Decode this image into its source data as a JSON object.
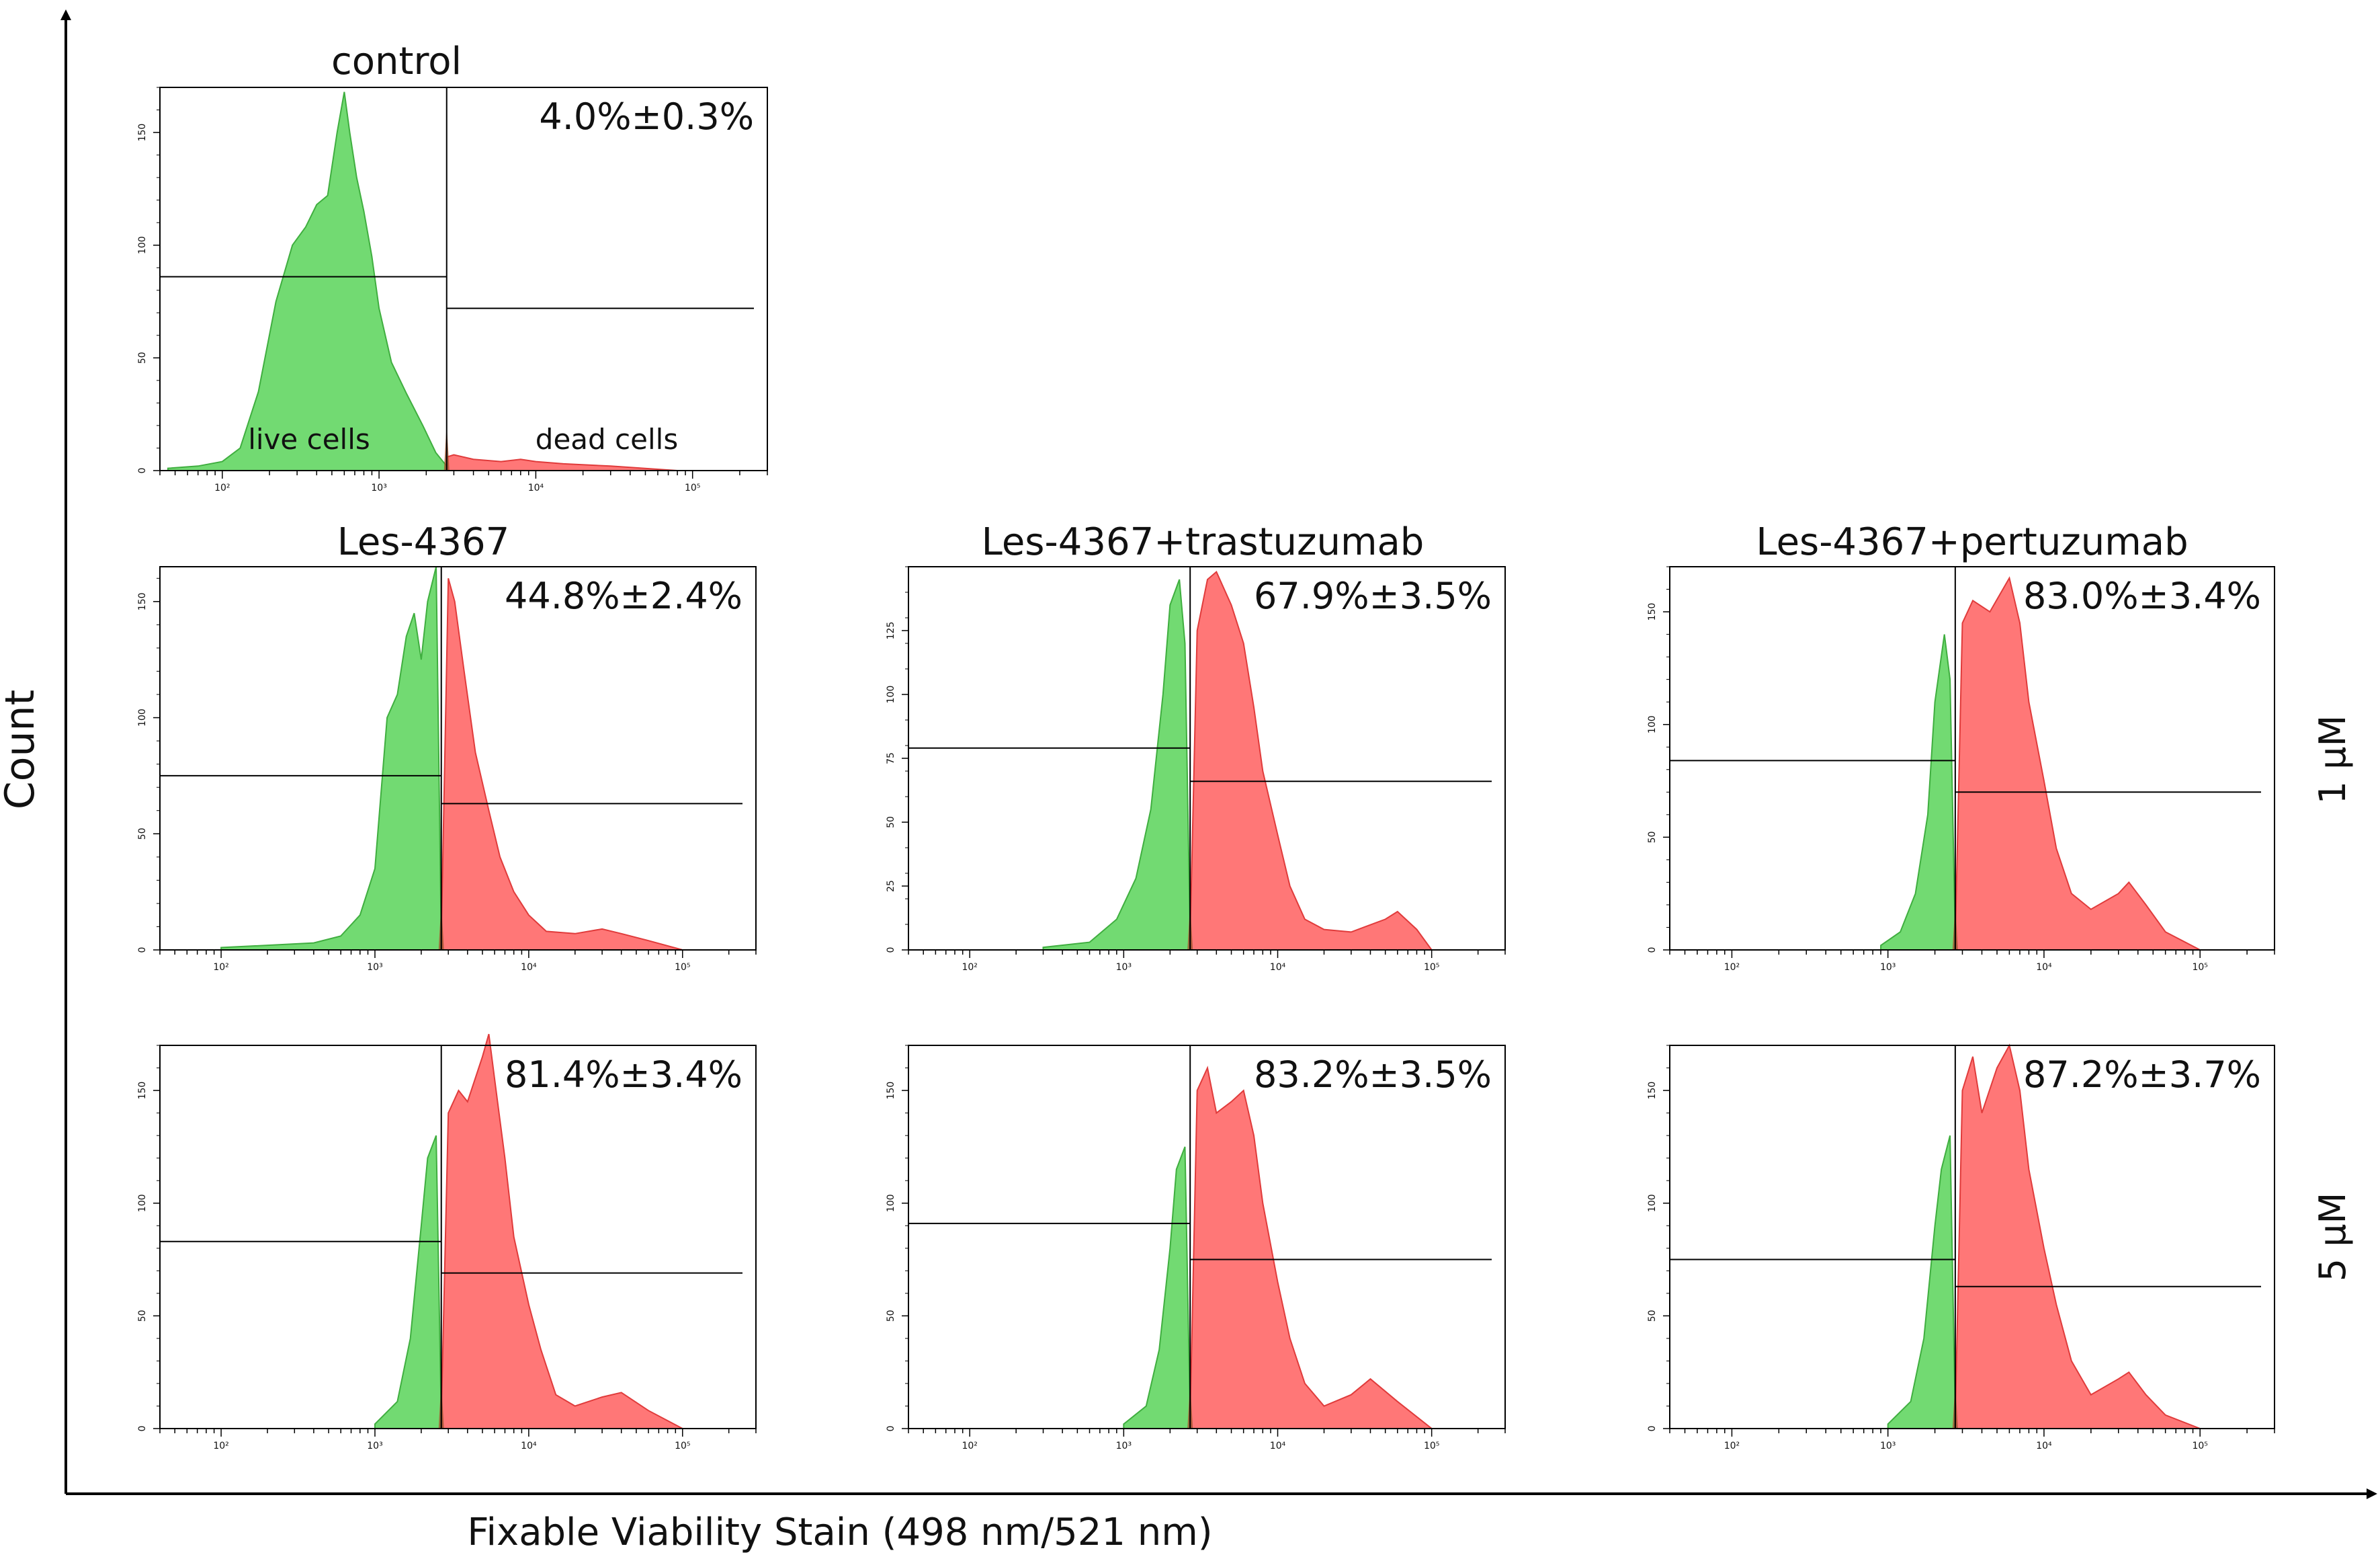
{
  "figure": {
    "y_axis_label": "Count",
    "x_axis_label": "Fixable Viability Stain (498 nm/521 nm)",
    "row_labels": [
      "1 μM",
      "5 μM"
    ],
    "column_titles": [
      "Les-4367",
      "Les-4367+trastuzumab",
      "Les-4367+pertuzumab"
    ],
    "colors": {
      "live": "#6ad86a",
      "dead": "#ff7070",
      "live_stroke": "#3fae3f",
      "dead_stroke": "#e03b3b",
      "overlap": "#a0522d",
      "gate": "#000000"
    }
  },
  "chart_data": [
    {
      "id": "control",
      "type": "area",
      "title": "control",
      "percentage_label": "4.0%±0.3%",
      "gate_labels": [
        "live cells",
        "dead cells"
      ],
      "x_scale": "log",
      "xlim": [
        40,
        300000
      ],
      "x_ticks": [
        100,
        1000,
        10000,
        100000
      ],
      "x_tick_labels": [
        "10²",
        "10³",
        "10⁴",
        "10⁵"
      ],
      "ylim": [
        0,
        170
      ],
      "y_ticks": [
        0,
        50,
        100,
        150
      ],
      "y_tick_labels": [
        "0",
        "50",
        "100",
        "150"
      ],
      "gate_x": 2700,
      "live_marker_y": 86,
      "dead_marker_y": 72,
      "series": [
        {
          "name": "live",
          "x": [
            45,
            70,
            100,
            130,
            170,
            220,
            280,
            340,
            400,
            470,
            540,
            600,
            650,
            720,
            800,
            900,
            1000,
            1200,
            1500,
            1900,
            2300,
            2700
          ],
          "y": [
            1,
            2,
            4,
            10,
            35,
            75,
            100,
            108,
            118,
            122,
            150,
            168,
            150,
            130,
            115,
            95,
            72,
            48,
            34,
            20,
            8,
            2
          ]
        },
        {
          "name": "dead",
          "x": [
            2700,
            3000,
            4000,
            6000,
            8000,
            10000,
            15000,
            30000,
            80000
          ],
          "y": [
            6,
            7,
            5,
            4,
            5,
            4,
            3,
            2,
            0
          ]
        }
      ]
    },
    {
      "id": "1uM-les",
      "type": "area",
      "title": "Les-4367",
      "row": "1 μM",
      "percentage_label": "44.8%±2.4%",
      "x_scale": "log",
      "xlim": [
        40,
        300000
      ],
      "x_ticks": [
        100,
        1000,
        10000,
        100000
      ],
      "x_tick_labels": [
        "10²",
        "10³",
        "10⁴",
        "10⁵"
      ],
      "ylim": [
        0,
        165
      ],
      "y_ticks": [
        0,
        50,
        100,
        150
      ],
      "y_tick_labels": [
        "0",
        "50",
        "100",
        "150"
      ],
      "gate_x": 2700,
      "live_marker_y": 75,
      "dead_marker_y": 63,
      "series": [
        {
          "name": "live",
          "x": [
            100,
            200,
            400,
            600,
            800,
            1000,
            1200,
            1400,
            1600,
            1800,
            2000,
            2200,
            2500,
            2700
          ],
          "y": [
            1,
            2,
            3,
            6,
            15,
            35,
            100,
            110,
            135,
            145,
            125,
            150,
            165,
            5
          ]
        },
        {
          "name": "dead",
          "x": [
            2700,
            3000,
            3300,
            3800,
            4500,
            5500,
            6500,
            8000,
            10000,
            13000,
            20000,
            30000,
            40000,
            60000,
            100000
          ],
          "y": [
            5,
            160,
            150,
            120,
            85,
            60,
            40,
            25,
            15,
            8,
            7,
            9,
            7,
            4,
            0
          ]
        }
      ]
    },
    {
      "id": "1uM-tras",
      "type": "area",
      "title": "Les-4367+trastuzumab",
      "row": "1 μM",
      "percentage_label": "67.9%±3.5%",
      "x_scale": "log",
      "xlim": [
        40,
        300000
      ],
      "x_ticks": [
        100,
        1000,
        10000,
        100000
      ],
      "x_tick_labels": [
        "10²",
        "10³",
        "10⁴",
        "10⁵"
      ],
      "ylim": [
        0,
        150
      ],
      "y_ticks": [
        0,
        25,
        50,
        75,
        100,
        125
      ],
      "y_tick_labels": [
        "0",
        "25",
        "50",
        "75",
        "100",
        "125"
      ],
      "gate_x": 2700,
      "live_marker_y": 79,
      "dead_marker_y": 66,
      "series": [
        {
          "name": "live",
          "x": [
            300,
            600,
            900,
            1200,
            1500,
            1800,
            2000,
            2300,
            2500,
            2700
          ],
          "y": [
            1,
            3,
            12,
            28,
            55,
            100,
            135,
            145,
            120,
            5
          ]
        },
        {
          "name": "dead",
          "x": [
            2700,
            3000,
            3500,
            4000,
            5000,
            6000,
            7000,
            8000,
            10000,
            12000,
            15000,
            20000,
            30000,
            50000,
            60000,
            80000,
            100000
          ],
          "y": [
            5,
            125,
            145,
            148,
            135,
            120,
            95,
            70,
            45,
            25,
            12,
            8,
            7,
            12,
            15,
            8,
            0
          ]
        }
      ]
    },
    {
      "id": "1uM-pert",
      "type": "area",
      "title": "Les-4367+pertuzumab",
      "row": "1 μM",
      "percentage_label": "83.0%±3.4%",
      "x_scale": "log",
      "xlim": [
        40,
        300000
      ],
      "x_ticks": [
        100,
        1000,
        10000,
        100000
      ],
      "x_tick_labels": [
        "10²",
        "10³",
        "10⁴",
        "10⁵"
      ],
      "ylim": [
        0,
        170
      ],
      "y_ticks": [
        0,
        50,
        100,
        150
      ],
      "y_tick_labels": [
        "0",
        "50",
        "100",
        "150"
      ],
      "gate_x": 2700,
      "live_marker_y": 84,
      "dead_marker_y": 70,
      "series": [
        {
          "name": "live",
          "x": [
            900,
            1200,
            1500,
            1800,
            2000,
            2300,
            2500,
            2700
          ],
          "y": [
            2,
            8,
            25,
            60,
            110,
            140,
            120,
            5
          ]
        },
        {
          "name": "dead",
          "x": [
            2700,
            3000,
            3500,
            4500,
            6000,
            7000,
            8000,
            10000,
            12000,
            15000,
            20000,
            30000,
            35000,
            45000,
            60000,
            100000
          ],
          "y": [
            5,
            145,
            155,
            150,
            165,
            145,
            110,
            75,
            45,
            25,
            18,
            25,
            30,
            20,
            8,
            0
          ]
        }
      ]
    },
    {
      "id": "5uM-les",
      "type": "area",
      "title": "",
      "row": "5 μM",
      "percentage_label": "81.4%±3.4%",
      "x_scale": "log",
      "xlim": [
        40,
        300000
      ],
      "x_ticks": [
        100,
        1000,
        10000,
        100000
      ],
      "x_tick_labels": [
        "10²",
        "10³",
        "10⁴",
        "10⁵"
      ],
      "ylim": [
        0,
        170
      ],
      "y_ticks": [
        0,
        50,
        100,
        150
      ],
      "y_tick_labels": [
        "0",
        "50",
        "100",
        "150"
      ],
      "gate_x": 2700,
      "live_marker_y": 83,
      "dead_marker_y": 69,
      "series": [
        {
          "name": "live",
          "x": [
            1000,
            1400,
            1700,
            2000,
            2200,
            2500,
            2700
          ],
          "y": [
            2,
            12,
            40,
            90,
            120,
            130,
            5
          ]
        },
        {
          "name": "dead",
          "x": [
            2700,
            3000,
            3500,
            4000,
            5000,
            5500,
            6000,
            7000,
            8000,
            10000,
            12000,
            15000,
            20000,
            30000,
            40000,
            60000,
            100000
          ],
          "y": [
            5,
            140,
            150,
            145,
            165,
            175,
            155,
            120,
            85,
            55,
            35,
            15,
            10,
            14,
            16,
            8,
            0
          ]
        }
      ]
    },
    {
      "id": "5uM-tras",
      "type": "area",
      "title": "",
      "row": "5 μM",
      "percentage_label": "83.2%±3.5%",
      "x_scale": "log",
      "xlim": [
        40,
        300000
      ],
      "x_ticks": [
        100,
        1000,
        10000,
        100000
      ],
      "x_tick_labels": [
        "10²",
        "10³",
        "10⁴",
        "10⁵"
      ],
      "ylim": [
        0,
        170
      ],
      "y_ticks": [
        0,
        50,
        100,
        150
      ],
      "y_tick_labels": [
        "0",
        "50",
        "100",
        "150"
      ],
      "gate_x": 2700,
      "live_marker_y": 91,
      "dead_marker_y": 75,
      "series": [
        {
          "name": "live",
          "x": [
            1000,
            1400,
            1700,
            2000,
            2200,
            2500,
            2700
          ],
          "y": [
            2,
            10,
            35,
            80,
            115,
            125,
            5
          ]
        },
        {
          "name": "dead",
          "x": [
            2700,
            3000,
            3500,
            4000,
            5000,
            6000,
            7000,
            8000,
            10000,
            12000,
            15000,
            20000,
            30000,
            40000,
            60000,
            100000
          ],
          "y": [
            5,
            150,
            160,
            140,
            145,
            150,
            130,
            100,
            65,
            40,
            20,
            10,
            15,
            22,
            12,
            0
          ]
        }
      ]
    },
    {
      "id": "5uM-pert",
      "type": "area",
      "title": "",
      "row": "5 μM",
      "percentage_label": "87.2%±3.7%",
      "x_scale": "log",
      "xlim": [
        40,
        300000
      ],
      "x_ticks": [
        100,
        1000,
        10000,
        100000
      ],
      "x_tick_labels": [
        "10²",
        "10³",
        "10⁴",
        "10⁵"
      ],
      "ylim": [
        0,
        170
      ],
      "y_ticks": [
        0,
        50,
        100,
        150
      ],
      "y_tick_labels": [
        "0",
        "50",
        "100",
        "150"
      ],
      "gate_x": 2700,
      "live_marker_y": 75,
      "dead_marker_y": 63,
      "series": [
        {
          "name": "live",
          "x": [
            1000,
            1400,
            1700,
            2000,
            2200,
            2500,
            2700
          ],
          "y": [
            2,
            12,
            40,
            90,
            115,
            130,
            5
          ]
        },
        {
          "name": "dead",
          "x": [
            2700,
            3000,
            3500,
            4000,
            5000,
            6000,
            7000,
            8000,
            10000,
            12000,
            15000,
            20000,
            30000,
            35000,
            45000,
            60000,
            100000
          ],
          "y": [
            5,
            150,
            165,
            140,
            160,
            170,
            150,
            115,
            80,
            55,
            30,
            15,
            22,
            25,
            15,
            6,
            0
          ]
        }
      ]
    }
  ]
}
